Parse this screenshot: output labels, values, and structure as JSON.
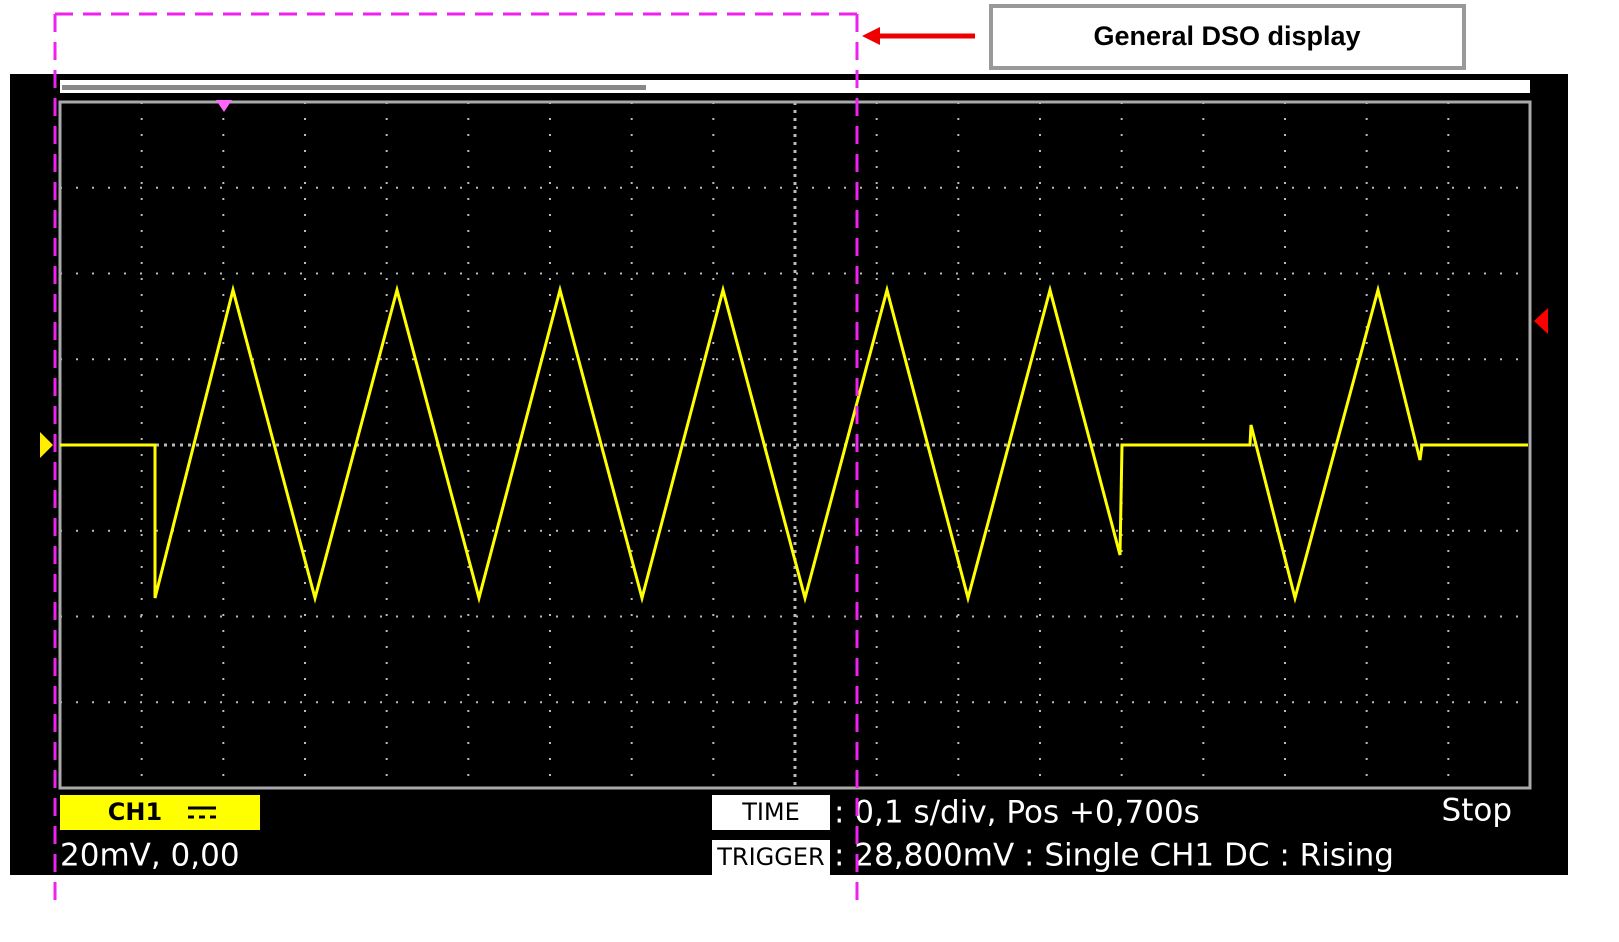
{
  "callout": {
    "label": "General DSO display"
  },
  "status": {
    "channel": "CH1",
    "channel_scale": "20mV, 0,00",
    "time_label": "TIME",
    "time_info": ": 0,1 s/div, Pos +0,700s",
    "state": "Stop",
    "trigger_label": "TRIGGER",
    "trigger_info": ": 28,800mV : Single CH1 DC : Rising"
  }
}
